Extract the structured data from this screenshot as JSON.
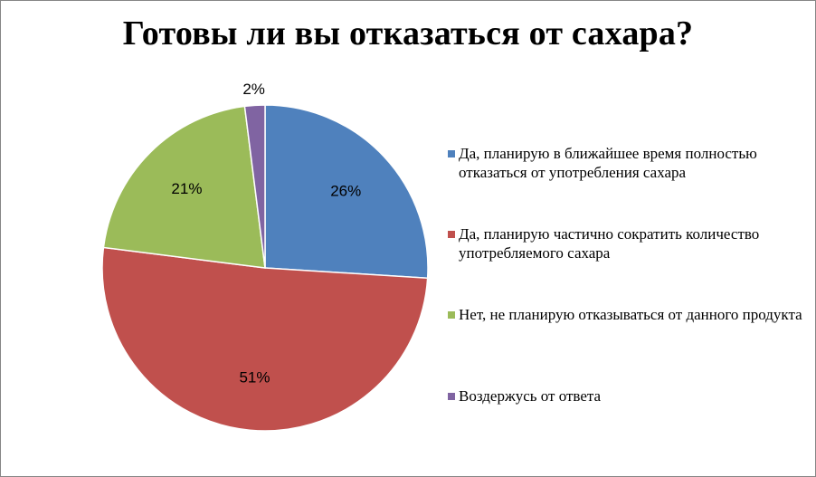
{
  "colors": {
    "series": [
      "#4f81bd",
      "#c0504d",
      "#9bbb59",
      "#8064a2"
    ]
  },
  "chart_data": {
    "type": "pie",
    "title": "Готовы ли вы отказаться от сахара?",
    "legend_position": "right",
    "slices": [
      {
        "label": "Да, планирую в ближайшее время полностью отказаться от употребления сахара",
        "value": 26,
        "display": "26%"
      },
      {
        "label": "Да, планирую частично сократить количество употребляемого сахара",
        "value": 51,
        "display": "51%"
      },
      {
        "label": "Нет, не планирую отказываться от данного продукта",
        "value": 21,
        "display": "21%"
      },
      {
        "label": "Воздержусь от ответа",
        "value": 2,
        "display": "2%"
      }
    ]
  }
}
